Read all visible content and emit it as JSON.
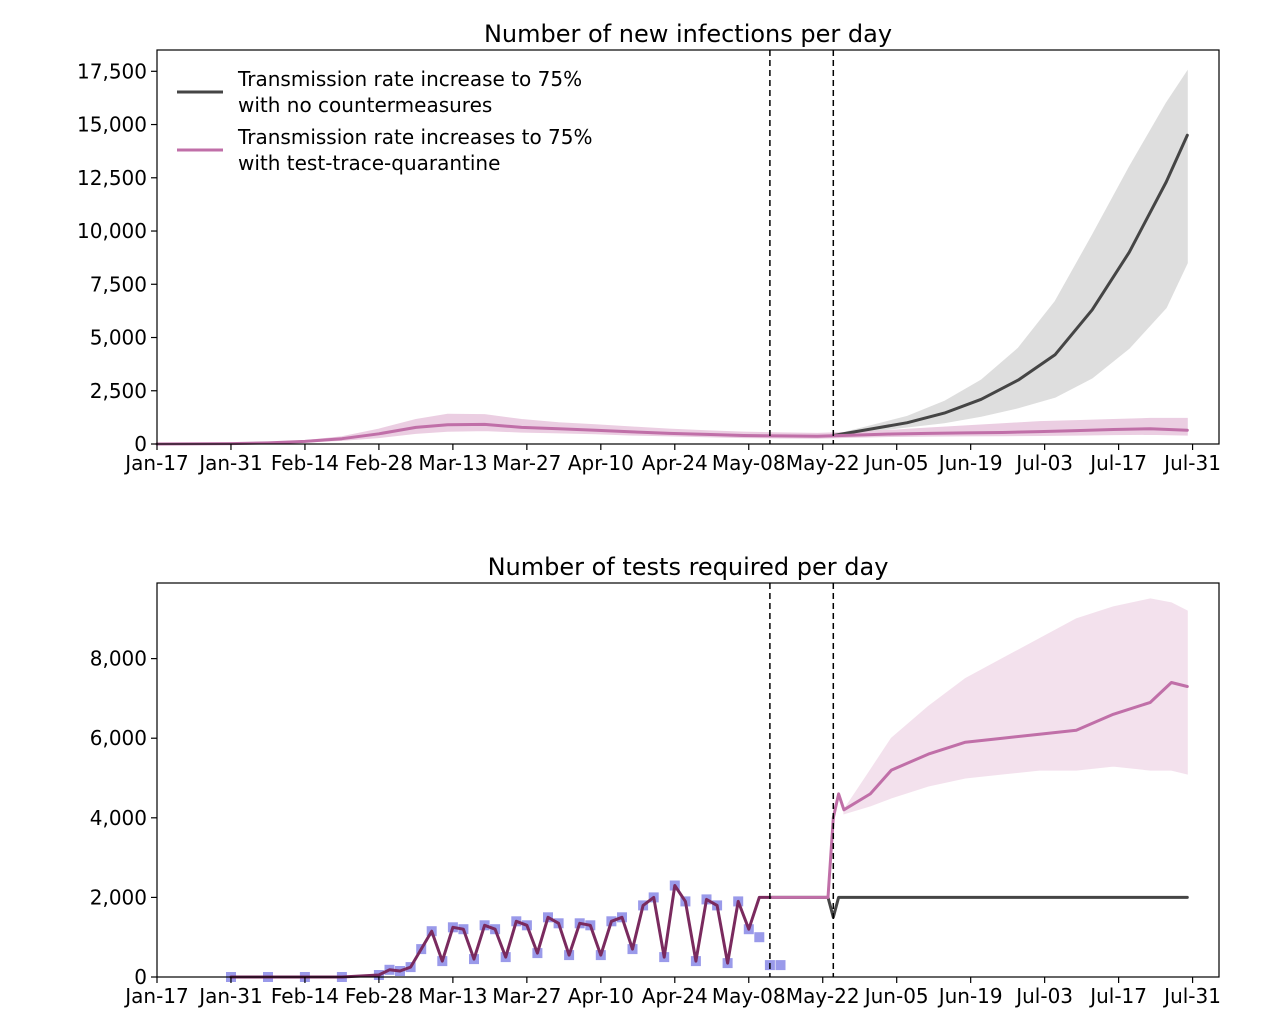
{
  "chart_data": [
    {
      "type": "line",
      "title": "Number of new infections per day",
      "xlabel": "",
      "ylabel": "",
      "x_ticks": [
        "Jan-17",
        "Jan-31",
        "Feb-14",
        "Feb-28",
        "Mar-13",
        "Mar-27",
        "Apr-10",
        "Apr-24",
        "May-08",
        "May-22",
        "Jun-05",
        "Jun-19",
        "Jul-03",
        "Jul-17",
        "Jul-31"
      ],
      "xlim": [
        "2021-01-17",
        "2021-08-06"
      ],
      "ylim": [
        0,
        18500
      ],
      "y_ticks": [
        0,
        2500,
        5000,
        7500,
        10000,
        12500,
        15000,
        17500
      ],
      "y_tick_labels": [
        "0",
        "2,500",
        "5,000",
        "7,500",
        "10,000",
        "12,500",
        "15,000",
        "17,500"
      ],
      "grid": false,
      "legend_position": "top-left",
      "vlines": [
        "2021-05-13",
        "2021-05-25"
      ],
      "series": [
        {
          "name": "Transmission rate increase to 75% with no countermeasures",
          "legend_lines": [
            "Transmission rate increase to 75%",
            "with no countermeasures"
          ],
          "color": "#454545",
          "band_color": "#d9d9d9",
          "x": [
            "2021-05-25",
            "2021-06-01",
            "2021-06-08",
            "2021-06-15",
            "2021-06-22",
            "2021-06-29",
            "2021-07-06",
            "2021-07-13",
            "2021-07-20",
            "2021-07-27",
            "2021-07-31"
          ],
          "y": [
            400,
            700,
            1000,
            1450,
            2100,
            3000,
            4200,
            6300,
            9000,
            12300,
            14500
          ],
          "lower": [
            380,
            600,
            800,
            1000,
            1300,
            1700,
            2200,
            3100,
            4500,
            6400,
            8500
          ],
          "upper": [
            420,
            850,
            1300,
            2000,
            3000,
            4500,
            6700,
            9800,
            13000,
            16000,
            17500
          ]
        },
        {
          "name": "Transmission rate increases to 75% with test-trace-quarantine",
          "legend_lines": [
            "Transmission rate increases to 75%",
            "with test-trace-quarantine"
          ],
          "color": "#c06fa8",
          "band_color": "#e8c6dd",
          "x": [
            "2021-01-17",
            "2021-01-31",
            "2021-02-07",
            "2021-02-14",
            "2021-02-21",
            "2021-02-28",
            "2021-03-07",
            "2021-03-13",
            "2021-03-20",
            "2021-03-27",
            "2021-04-03",
            "2021-04-10",
            "2021-04-17",
            "2021-04-24",
            "2021-05-01",
            "2021-05-08",
            "2021-05-15",
            "2021-05-22",
            "2021-05-29",
            "2021-06-05",
            "2021-06-12",
            "2021-06-19",
            "2021-06-26",
            "2021-07-03",
            "2021-07-10",
            "2021-07-17",
            "2021-07-24",
            "2021-07-31"
          ],
          "y": [
            0,
            20,
            50,
            120,
            250,
            480,
            780,
            900,
            920,
            780,
            720,
            650,
            570,
            500,
            450,
            400,
            380,
            360,
            420,
            470,
            500,
            520,
            540,
            580,
            630,
            680,
            720,
            650
          ],
          "lower": [
            0,
            15,
            35,
            90,
            170,
            300,
            500,
            600,
            630,
            560,
            520,
            480,
            420,
            380,
            340,
            300,
            280,
            270,
            320,
            350,
            370,
            380,
            390,
            400,
            420,
            440,
            450,
            420
          ],
          "upper": [
            0,
            30,
            70,
            160,
            340,
            700,
            1150,
            1400,
            1380,
            1150,
            1000,
            900,
            800,
            700,
            620,
            560,
            520,
            500,
            560,
            650,
            750,
            850,
            950,
            1050,
            1100,
            1150,
            1200,
            1200
          ]
        }
      ]
    },
    {
      "type": "line",
      "title": "Number of tests required per day",
      "xlabel": "",
      "ylabel": "",
      "x_ticks": [
        "Jan-17",
        "Jan-31",
        "Feb-14",
        "Feb-28",
        "Mar-13",
        "Mar-27",
        "Apr-10",
        "Apr-24",
        "May-08",
        "May-22",
        "Jun-05",
        "Jun-19",
        "Jul-03",
        "Jul-17",
        "Jul-31"
      ],
      "xlim": [
        "2021-01-17",
        "2021-08-06"
      ],
      "ylim": [
        0,
        9900
      ],
      "y_ticks": [
        0,
        2000,
        4000,
        6000,
        8000
      ],
      "y_tick_labels": [
        "0",
        "2,000",
        "4,000",
        "6,000",
        "8,000"
      ],
      "grid": false,
      "vlines": [
        "2021-05-13",
        "2021-05-25"
      ],
      "observed": {
        "color": "#9a9aea",
        "x": [
          "2021-01-31",
          "2021-02-07",
          "2021-02-14",
          "2021-02-21",
          "2021-02-28",
          "2021-03-02",
          "2021-03-04",
          "2021-03-06",
          "2021-03-08",
          "2021-03-10",
          "2021-03-12",
          "2021-03-14",
          "2021-03-16",
          "2021-03-18",
          "2021-03-20",
          "2021-03-22",
          "2021-03-24",
          "2021-03-26",
          "2021-03-28",
          "2021-03-30",
          "2021-04-01",
          "2021-04-03",
          "2021-04-05",
          "2021-04-07",
          "2021-04-09",
          "2021-04-11",
          "2021-04-13",
          "2021-04-15",
          "2021-04-17",
          "2021-04-19",
          "2021-04-21",
          "2021-04-23",
          "2021-04-25",
          "2021-04-27",
          "2021-04-29",
          "2021-05-01",
          "2021-05-03",
          "2021-05-05",
          "2021-05-07",
          "2021-05-09",
          "2021-05-11",
          "2021-05-13",
          "2021-05-15"
        ],
        "y": [
          0,
          0,
          0,
          0,
          50,
          180,
          150,
          250,
          700,
          1150,
          400,
          1250,
          1200,
          450,
          1300,
          1200,
          500,
          1400,
          1300,
          600,
          1500,
          1350,
          550,
          1350,
          1300,
          550,
          1400,
          1500,
          700,
          1800,
          2000,
          500,
          2300,
          1900,
          400,
          1950,
          1800,
          350,
          1900,
          1200,
          1000,
          300,
          300
        ]
      },
      "series": [
        {
          "name": "",
          "color": "#454545",
          "x": [
            "2021-05-13",
            "2021-05-24",
            "2021-05-25",
            "2021-05-26",
            "2021-07-31"
          ],
          "y": [
            2000,
            2000,
            1500,
            2000,
            2000
          ]
        },
        {
          "name": "",
          "color": "#c06fa8",
          "band_color": "#f2dcea",
          "x": [
            "2021-05-13",
            "2021-05-24",
            "2021-05-25",
            "2021-05-26",
            "2021-05-27",
            "2021-06-01",
            "2021-06-05",
            "2021-06-12",
            "2021-06-19",
            "2021-06-26",
            "2021-07-03",
            "2021-07-10",
            "2021-07-17",
            "2021-07-24",
            "2021-07-28",
            "2021-07-31"
          ],
          "y": [
            2000,
            2000,
            4000,
            4600,
            4200,
            4600,
            5200,
            5600,
            5900,
            6000,
            6100,
            6200,
            6600,
            6900,
            7400,
            7300
          ],
          "lower": [
            null,
            null,
            null,
            null,
            4100,
            4300,
            4500,
            4800,
            5000,
            5100,
            5200,
            5200,
            5300,
            5200,
            5200,
            5100
          ],
          "upper": [
            null,
            null,
            null,
            null,
            4200,
            5200,
            6000,
            6800,
            7500,
            8000,
            8500,
            9000,
            9300,
            9500,
            9400,
            9200
          ]
        },
        {
          "name": "",
          "color": "#7a2a5e",
          "x": [
            "2021-01-31",
            "2021-02-07",
            "2021-02-14",
            "2021-02-21",
            "2021-02-28",
            "2021-03-02",
            "2021-03-04",
            "2021-03-06",
            "2021-03-08",
            "2021-03-10",
            "2021-03-12",
            "2021-03-14",
            "2021-03-16",
            "2021-03-18",
            "2021-03-20",
            "2021-03-22",
            "2021-03-24",
            "2021-03-26",
            "2021-03-28",
            "2021-03-30",
            "2021-04-01",
            "2021-04-03",
            "2021-04-05",
            "2021-04-07",
            "2021-04-09",
            "2021-04-11",
            "2021-04-13",
            "2021-04-15",
            "2021-04-17",
            "2021-04-19",
            "2021-04-21",
            "2021-04-23",
            "2021-04-25",
            "2021-04-27",
            "2021-04-29",
            "2021-05-01",
            "2021-05-03",
            "2021-05-05",
            "2021-05-07",
            "2021-05-09",
            "2021-05-11",
            "2021-05-13"
          ],
          "y": [
            0,
            0,
            0,
            0,
            50,
            180,
            150,
            250,
            700,
            1150,
            400,
            1250,
            1200,
            450,
            1300,
            1200,
            500,
            1400,
            1300,
            600,
            1500,
            1350,
            550,
            1350,
            1300,
            550,
            1400,
            1500,
            700,
            1800,
            2000,
            500,
            2300,
            1900,
            400,
            1950,
            1800,
            350,
            1900,
            1200,
            2000,
            2000
          ]
        }
      ]
    }
  ]
}
